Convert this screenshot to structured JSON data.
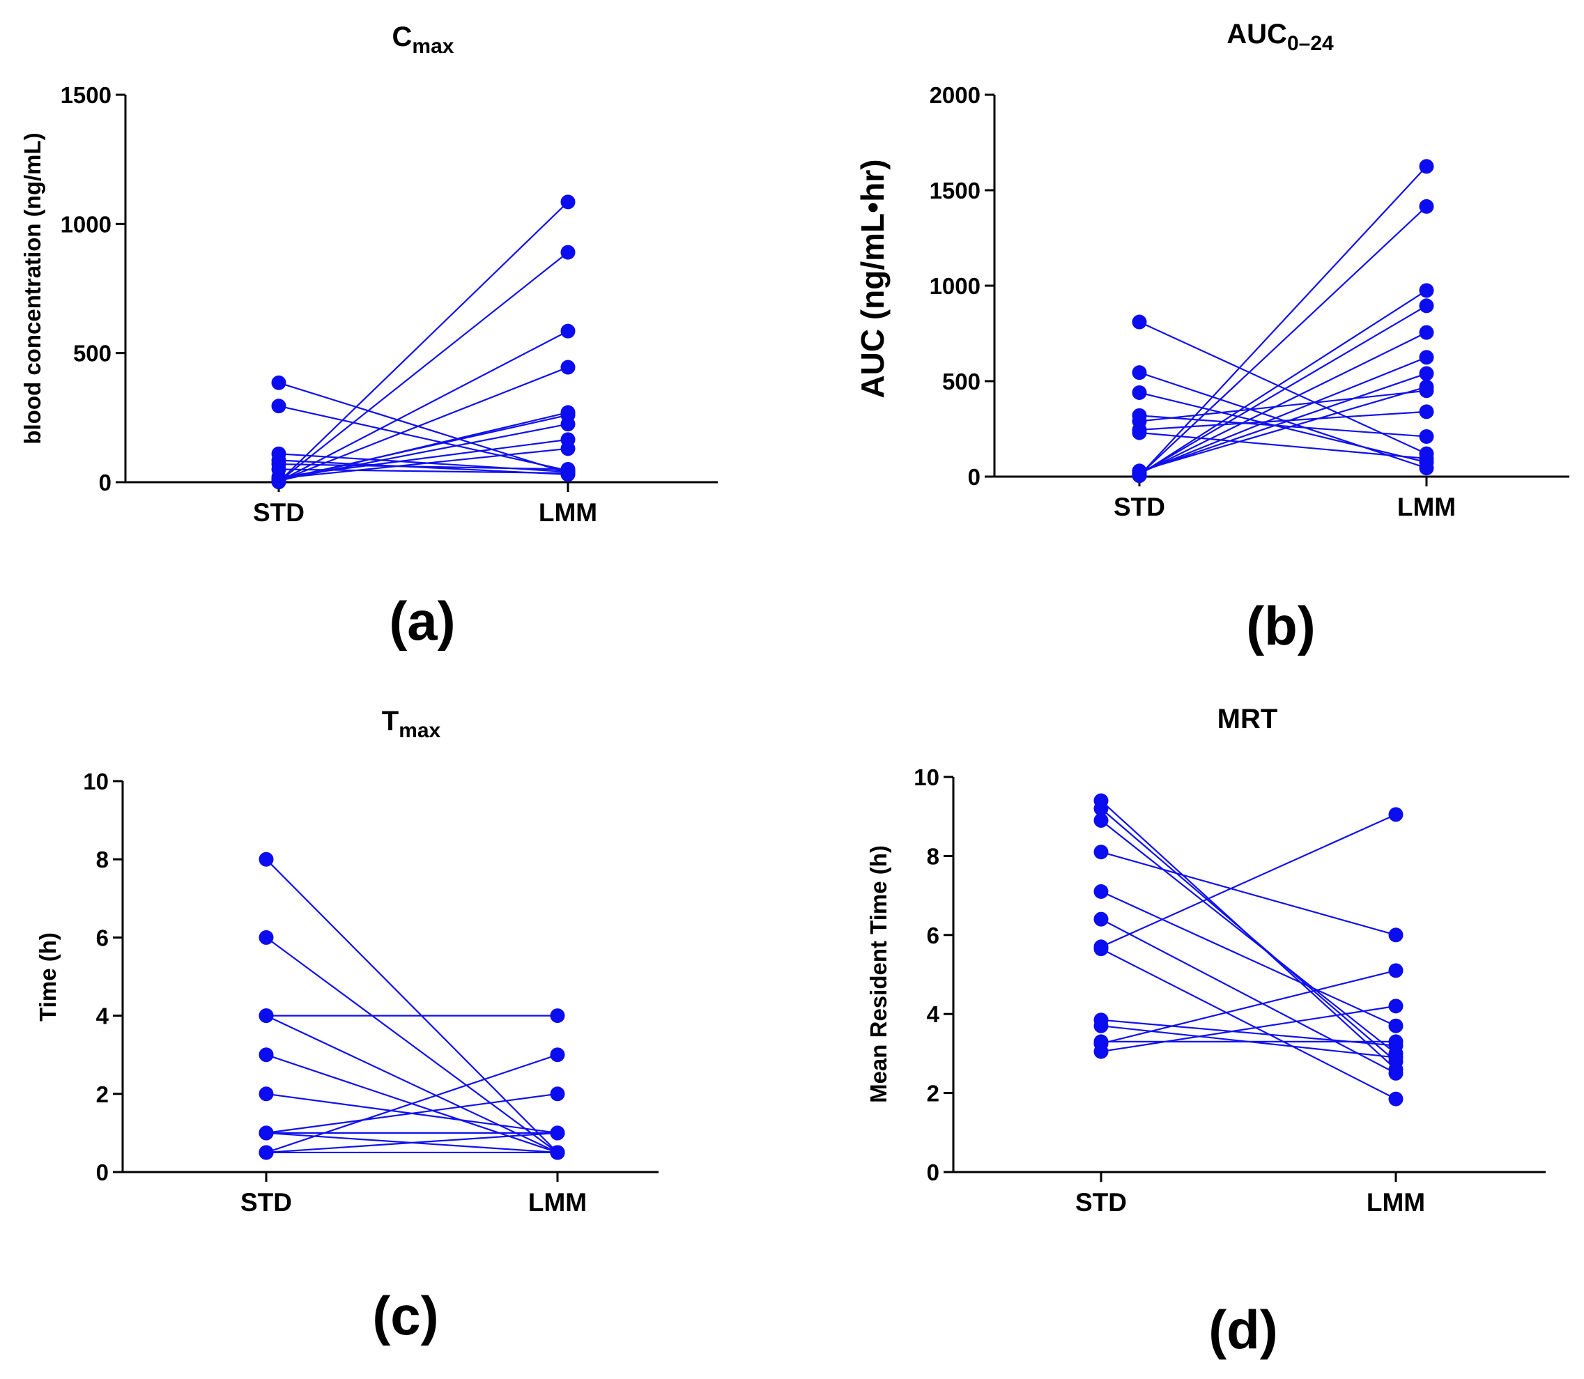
{
  "chart_data": [
    {
      "id": "a",
      "type": "line",
      "panel_label": "(a)",
      "title": "C",
      "title_sub": "max",
      "xlabel": "",
      "ylabel": "blood concentration (ng/mL)",
      "categories": [
        "STD",
        "LMM"
      ],
      "ylim": [
        0,
        1500
      ],
      "yticks": [
        0,
        500,
        1000,
        1500
      ],
      "grid": false,
      "pairs": [
        [
          385,
          35
        ],
        [
          295,
          45
        ],
        [
          110,
          40
        ],
        [
          85,
          30
        ],
        [
          70,
          50
        ],
        [
          50,
          35
        ],
        [
          20,
          165
        ],
        [
          15,
          130
        ],
        [
          10,
          260
        ],
        [
          8,
          225
        ],
        [
          5,
          270
        ],
        [
          4,
          445
        ],
        [
          3,
          585
        ],
        [
          2,
          890
        ],
        [
          1,
          1085
        ]
      ]
    },
    {
      "id": "b",
      "type": "line",
      "panel_label": "(b)",
      "title": "AUC",
      "title_sub": "0–24",
      "xlabel": "",
      "ylabel": "AUC (ng/mL•hr)",
      "categories": [
        "STD",
        "LMM"
      ],
      "ylim": [
        0,
        2000
      ],
      "yticks": [
        0,
        500,
        1000,
        1500,
        2000
      ],
      "grid": false,
      "pairs": [
        [
          810,
          120
        ],
        [
          545,
          45
        ],
        [
          440,
          75
        ],
        [
          320,
          210
        ],
        [
          290,
          450
        ],
        [
          245,
          340
        ],
        [
          230,
          95
        ],
        [
          30,
          470
        ],
        [
          25,
          540
        ],
        [
          20,
          625
        ],
        [
          15,
          755
        ],
        [
          12,
          895
        ],
        [
          10,
          975
        ],
        [
          8,
          1415
        ],
        [
          5,
          1625
        ]
      ]
    },
    {
      "id": "c",
      "type": "line",
      "panel_label": "(c)",
      "title": "T",
      "title_sub": "max",
      "xlabel": "",
      "ylabel": "Time (h)",
      "categories": [
        "STD",
        "LMM"
      ],
      "ylim": [
        0,
        10
      ],
      "yticks": [
        0,
        2,
        4,
        6,
        8,
        10
      ],
      "grid": false,
      "pairs": [
        [
          8,
          0.5
        ],
        [
          6,
          0.5
        ],
        [
          4,
          4
        ],
        [
          4,
          0.5
        ],
        [
          3,
          0.5
        ],
        [
          2,
          1
        ],
        [
          1,
          2
        ],
        [
          1,
          0.5
        ],
        [
          1,
          1
        ],
        [
          0.5,
          3
        ],
        [
          0.5,
          1
        ],
        [
          0.5,
          0.5
        ]
      ]
    },
    {
      "id": "d",
      "type": "line",
      "panel_label": "(d)",
      "title": "MRT",
      "title_sub": "",
      "xlabel": "",
      "ylabel": "Mean Resident Time  (h)",
      "categories": [
        "STD",
        "LMM"
      ],
      "ylim": [
        0,
        10
      ],
      "yticks": [
        0,
        2,
        4,
        6,
        8,
        10
      ],
      "grid": false,
      "pairs": [
        [
          9.4,
          2.6
        ],
        [
          9.2,
          2.8
        ],
        [
          8.9,
          3.0
        ],
        [
          8.1,
          6.0
        ],
        [
          7.1,
          3.7
        ],
        [
          6.4,
          2.5
        ],
        [
          5.7,
          9.05
        ],
        [
          5.65,
          1.85
        ],
        [
          3.85,
          3.2
        ],
        [
          3.7,
          2.9
        ],
        [
          3.3,
          3.3
        ],
        [
          3.25,
          5.1
        ],
        [
          3.05,
          4.2
        ]
      ]
    }
  ]
}
